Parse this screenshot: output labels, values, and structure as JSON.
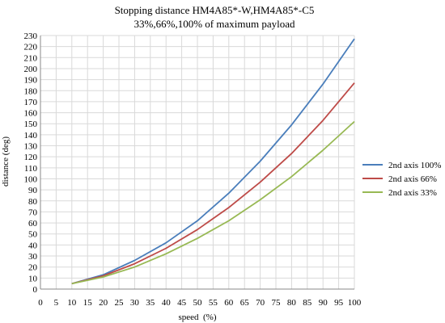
{
  "chart_data": {
    "type": "line",
    "title": "Stopping distance HM4A85*-W,HM4A85*-C5",
    "subtitle": "33%,66%,100% of maximum payload",
    "xlabel": "speed  (%)",
    "ylabel": "distance (deg)",
    "xlim": [
      0,
      100
    ],
    "ylim": [
      0,
      230
    ],
    "x_ticks": [
      0,
      5,
      10,
      15,
      20,
      25,
      30,
      35,
      40,
      45,
      50,
      55,
      60,
      65,
      70,
      75,
      80,
      85,
      90,
      95,
      100
    ],
    "y_ticks": [
      0,
      10,
      20,
      30,
      40,
      50,
      60,
      70,
      80,
      90,
      100,
      110,
      120,
      130,
      140,
      150,
      160,
      170,
      180,
      190,
      200,
      210,
      220,
      230
    ],
    "grid": true,
    "legend_position": "right",
    "x": [
      10,
      20,
      30,
      40,
      50,
      60,
      70,
      80,
      90,
      100
    ],
    "series": [
      {
        "name": "2nd axis 100%",
        "color": "#4a7ebb",
        "values": [
          5,
          13,
          26,
          42,
          62,
          87,
          116,
          149,
          186,
          227
        ]
      },
      {
        "name": "2nd axis 66%",
        "color": "#be4b48",
        "values": [
          5,
          12,
          23,
          37,
          54,
          74,
          97,
          123,
          153,
          187
        ]
      },
      {
        "name": "2nd axis 33%",
        "color": "#98b954",
        "values": [
          5,
          11,
          20,
          32,
          46,
          62,
          81,
          102,
          126,
          152
        ]
      }
    ]
  }
}
